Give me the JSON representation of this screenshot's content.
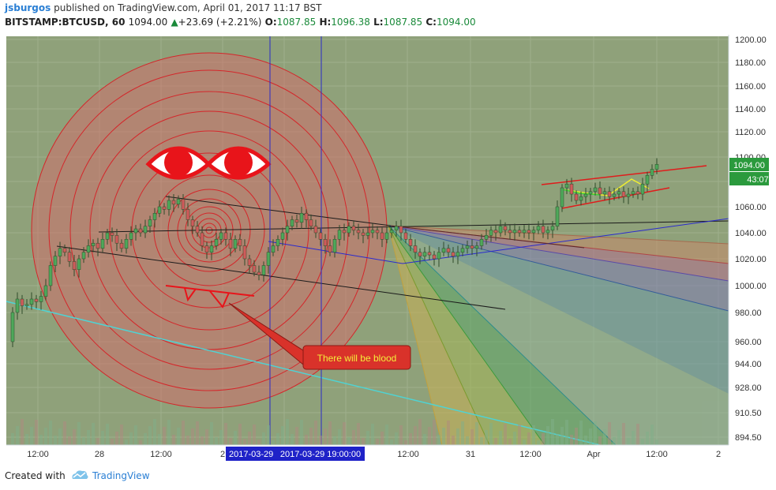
{
  "header": {
    "user": "jsburgos",
    "published_text": "published on TradingView.com, April 01, 2017 11:17 BST",
    "symbol": "BITSTAMP:BTCUSD, 60",
    "last": "1094.00",
    "change": "+23.69 (+2.21%)",
    "o_label": "O:",
    "o_val": "1087.85",
    "h_label": "H:",
    "h_val": "1096.38",
    "l_label": "L:",
    "l_val": "1087.85",
    "c_label": "C:",
    "c_val": "1094.00"
  },
  "footer": {
    "created_with": "Created with",
    "brand": "TradingView"
  },
  "colors": {
    "chart_bg": "#8fa17a",
    "up_candle": "#4ea85a",
    "down_candle": "#cf5b5b",
    "price_label_bg": "#2b9a3d",
    "date_label_bg": "#1f22c8",
    "callout_bg": "#d9322a",
    "callout_text": "#f4ee3a"
  },
  "chart_data": {
    "type": "candlestick",
    "symbol": "BITSTAMP:BTCUSD",
    "interval": "60",
    "y_axis": {
      "ticks": [
        "1200.00",
        "1180.00",
        "1160.00",
        "1140.00",
        "1120.00",
        "1100.00",
        "1080.00",
        "1060.00",
        "1040.00",
        "1020.00",
        "1000.00",
        "980.00",
        "960.00",
        "944.00",
        "928.00",
        "910.50",
        "894.50"
      ]
    },
    "x_axis": {
      "ticks": [
        "12:00",
        "28",
        "12:00",
        "2",
        "12:00",
        "31",
        "12:00",
        "Apr",
        "12:00",
        "2"
      ]
    },
    "crosshair_labels": [
      "2017-03-29 (",
      "2017-03-29 19:00:00"
    ],
    "price_labels": [
      "1094.00",
      "43:07"
    ],
    "annotations": [
      {
        "type": "callout",
        "text": "There will be blood"
      }
    ],
    "series_close_path": [
      [
        0,
        960
      ],
      [
        6,
        980
      ],
      [
        12,
        990
      ],
      [
        18,
        985
      ],
      [
        24,
        986
      ],
      [
        30,
        990
      ],
      [
        36,
        988
      ],
      [
        42,
        992
      ],
      [
        48,
        1000
      ],
      [
        54,
        1015
      ],
      [
        60,
        1022
      ],
      [
        66,
        1028
      ],
      [
        72,
        1025
      ],
      [
        78,
        1018
      ],
      [
        84,
        1012
      ],
      [
        90,
        1020
      ],
      [
        96,
        1025
      ],
      [
        102,
        1030
      ],
      [
        108,
        1032
      ],
      [
        114,
        1028
      ],
      [
        120,
        1035
      ],
      [
        126,
        1040
      ],
      [
        132,
        1038
      ],
      [
        138,
        1032
      ],
      [
        144,
        1028
      ],
      [
        150,
        1035
      ],
      [
        156,
        1040
      ],
      [
        162,
        1043
      ],
      [
        168,
        1040
      ],
      [
        174,
        1045
      ],
      [
        180,
        1050
      ],
      [
        186,
        1055
      ],
      [
        192,
        1060
      ],
      [
        198,
        1058
      ],
      [
        204,
        1065
      ],
      [
        210,
        1062
      ],
      [
        216,
        1066
      ],
      [
        222,
        1058
      ],
      [
        228,
        1050
      ],
      [
        234,
        1045
      ],
      [
        240,
        1040
      ],
      [
        246,
        1030
      ],
      [
        252,
        1025
      ],
      [
        258,
        1030
      ],
      [
        264,
        1035
      ],
      [
        270,
        1040
      ],
      [
        276,
        1035
      ],
      [
        282,
        1028
      ],
      [
        288,
        1035
      ],
      [
        294,
        1030
      ],
      [
        300,
        1020
      ],
      [
        306,
        1015
      ],
      [
        312,
        1010
      ],
      [
        318,
        1008
      ],
      [
        324,
        1015
      ],
      [
        330,
        1025
      ],
      [
        336,
        1030
      ],
      [
        342,
        1035
      ],
      [
        348,
        1040
      ],
      [
        354,
        1045
      ],
      [
        360,
        1050
      ],
      [
        366,
        1048
      ],
      [
        372,
        1055
      ],
      [
        378,
        1050
      ],
      [
        384,
        1045
      ],
      [
        390,
        1040
      ],
      [
        396,
        1035
      ],
      [
        402,
        1030
      ],
      [
        408,
        1025
      ],
      [
        414,
        1035
      ],
      [
        420,
        1042
      ],
      [
        426,
        1040
      ],
      [
        432,
        1045
      ],
      [
        438,
        1042
      ],
      [
        444,
        1040
      ],
      [
        450,
        1038
      ],
      [
        456,
        1040
      ],
      [
        462,
        1042
      ],
      [
        468,
        1040
      ],
      [
        474,
        1035
      ],
      [
        480,
        1040
      ],
      [
        486,
        1042
      ],
      [
        492,
        1045
      ],
      [
        498,
        1040
      ],
      [
        504,
        1035
      ],
      [
        510,
        1030
      ],
      [
        516,
        1025
      ],
      [
        522,
        1022
      ],
      [
        528,
        1025
      ],
      [
        534,
        1023
      ],
      [
        540,
        1020
      ],
      [
        546,
        1025
      ],
      [
        552,
        1028
      ],
      [
        558,
        1025
      ],
      [
        564,
        1022
      ],
      [
        570,
        1025
      ],
      [
        576,
        1028
      ],
      [
        582,
        1030
      ],
      [
        588,
        1028
      ],
      [
        594,
        1030
      ],
      [
        600,
        1035
      ],
      [
        606,
        1038
      ],
      [
        612,
        1042
      ],
      [
        618,
        1040
      ],
      [
        624,
        1045
      ],
      [
        630,
        1042
      ],
      [
        636,
        1040
      ],
      [
        642,
        1042
      ],
      [
        648,
        1040
      ],
      [
        654,
        1042
      ],
      [
        660,
        1040
      ],
      [
        666,
        1042
      ],
      [
        672,
        1045
      ],
      [
        678,
        1040
      ],
      [
        684,
        1042
      ],
      [
        690,
        1045
      ],
      [
        696,
        1060
      ],
      [
        702,
        1075
      ],
      [
        708,
        1078
      ],
      [
        714,
        1070
      ],
      [
        720,
        1065
      ],
      [
        726,
        1068
      ],
      [
        732,
        1070
      ],
      [
        738,
        1072
      ],
      [
        744,
        1075
      ],
      [
        750,
        1070
      ],
      [
        756,
        1072
      ],
      [
        762,
        1068
      ],
      [
        768,
        1070
      ],
      [
        774,
        1072
      ],
      [
        780,
        1068
      ],
      [
        786,
        1070
      ],
      [
        792,
        1072
      ],
      [
        798,
        1070
      ],
      [
        804,
        1078
      ],
      [
        810,
        1085
      ],
      [
        816,
        1090
      ],
      [
        822,
        1094
      ]
    ]
  }
}
